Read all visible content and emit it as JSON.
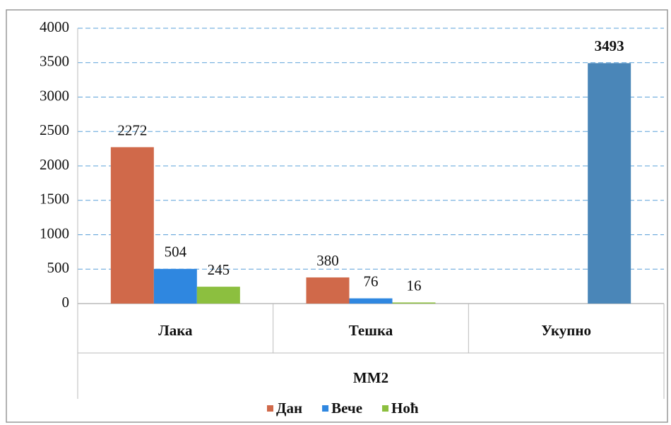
{
  "chart_data": {
    "type": "bar",
    "categories": [
      "Лака",
      "Тешка",
      "Укупно"
    ],
    "series": [
      {
        "name": "Дан",
        "color": "#d0694a",
        "values": [
          2272,
          380,
          null
        ]
      },
      {
        "name": "Вече",
        "color": "#2f87e0",
        "values": [
          504,
          76,
          null
        ]
      },
      {
        "name": "Ноћ",
        "color": "#8cbf3f",
        "values": [
          245,
          16,
          3493
        ],
        "colors": [
          "#8cbf3f",
          "#8cbf3f",
          "#4a86b8"
        ]
      }
    ],
    "xlabel": "ММ2",
    "ylim": [
      0,
      4000
    ],
    "yticks": [
      0,
      500,
      1000,
      1500,
      2000,
      2500,
      3000,
      3500,
      4000
    ],
    "grid": true,
    "legend": "bottom"
  }
}
